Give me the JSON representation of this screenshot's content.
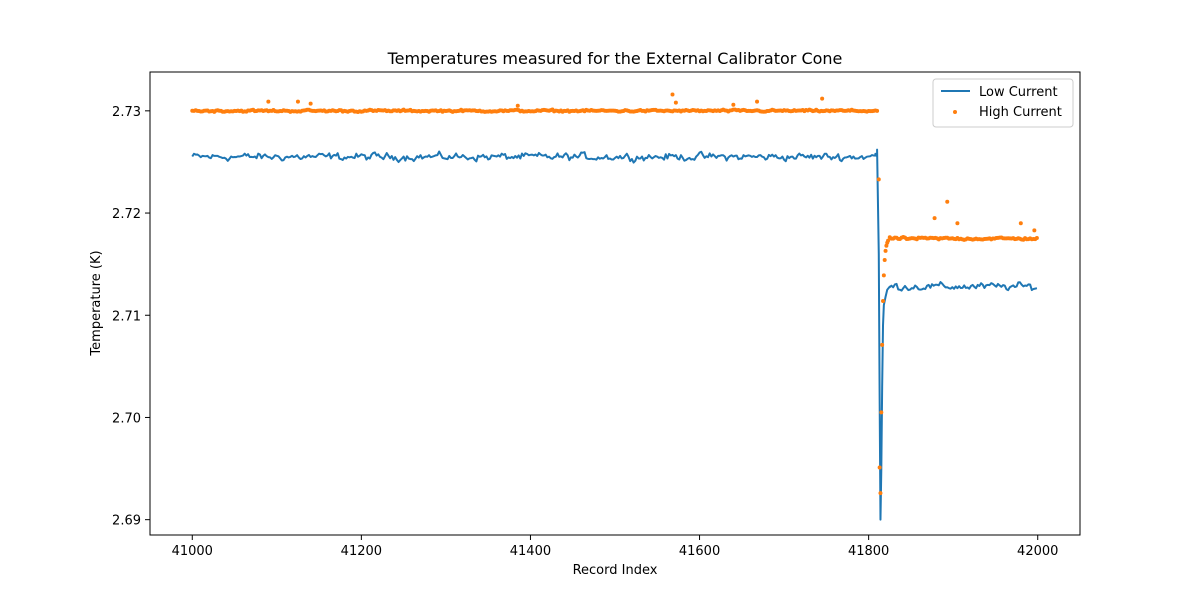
{
  "chart_data": {
    "type": "line",
    "title": "Temperatures measured for the External Calibrator Cone",
    "xlabel": "Record Index",
    "ylabel": "Temperature (K)",
    "xlim": [
      40950,
      42050
    ],
    "ylim": [
      2.6885,
      2.7338
    ],
    "xticks": [
      41000,
      41200,
      41400,
      41600,
      41800,
      42000
    ],
    "xtick_labels": [
      "41000",
      "41200",
      "41400",
      "41600",
      "41800",
      "42000"
    ],
    "yticks": [
      2.69,
      2.7,
      2.71,
      2.72,
      2.73
    ],
    "ytick_labels": [
      "2.69",
      "2.70",
      "2.71",
      "2.72",
      "2.73"
    ],
    "grid": false,
    "legend_position": "top-right",
    "series": [
      {
        "name": "Low Current",
        "style": "line",
        "color": "#1f77b4",
        "segments": [
          {
            "x_start": 41000,
            "x_end": 41810,
            "base": 2.7255,
            "amplitude": 0.0009
          },
          {
            "x_start": 41825,
            "x_end": 42000,
            "base": 2.7128,
            "amplitude": 0.0009
          }
        ],
        "transition": {
          "x": [
            41808,
            41810,
            41812,
            41813,
            41814,
            41815,
            41816,
            41817,
            41818,
            41820,
            41822,
            41825
          ],
          "values": [
            2.7258,
            2.7262,
            2.716,
            2.702,
            2.69,
            2.695,
            2.703,
            2.709,
            2.711,
            2.7118,
            2.7125,
            2.7128
          ]
        }
      },
      {
        "name": "High Current",
        "style": "scatter",
        "color": "#ff7f0e",
        "segments": [
          {
            "x_start": 41000,
            "x_end": 41810,
            "base": 2.73,
            "amplitude": 0.00025
          },
          {
            "x_start": 41825,
            "x_end": 42000,
            "base": 2.7175,
            "amplitude": 0.0003
          }
        ],
        "transition": {
          "x": [
            41812,
            41813,
            41814,
            41815,
            41816,
            41817,
            41818,
            41819,
            41820,
            41821,
            41822,
            41823
          ],
          "values": [
            2.7233,
            2.6951,
            2.6926,
            2.7005,
            2.7071,
            2.7114,
            2.7139,
            2.7154,
            2.7163,
            2.7168,
            2.7171,
            2.7173
          ]
        },
        "outliers": {
          "x": [
            41090,
            41125,
            41140,
            41385,
            41568,
            41572,
            41640,
            41668,
            41745,
            41893,
            41905,
            41878,
            41980,
            41996
          ],
          "values": [
            2.7309,
            2.7309,
            2.7307,
            2.7305,
            2.7316,
            2.7308,
            2.7306,
            2.7309,
            2.7312,
            2.7211,
            2.719,
            2.7195,
            2.719,
            2.7183
          ]
        }
      }
    ]
  }
}
